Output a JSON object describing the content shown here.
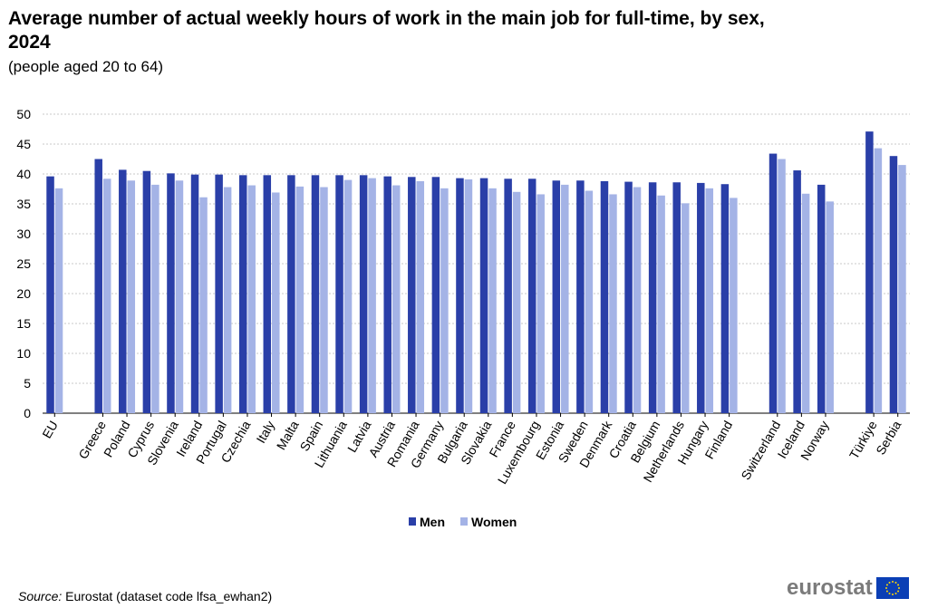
{
  "header": {
    "title": "Average number of actual weekly hours of work in the main job for full-time, by sex, 2024",
    "subtitle": "(people aged 20 to 64)"
  },
  "footer": {
    "source_label": "Source:",
    "source_text": "Eurostat (dataset code lfsa_ewhan2)",
    "logo_text": "eurostat",
    "logo_icon": "eu-flag-icon"
  },
  "colors": {
    "men": "#2a3fa8",
    "women": "#a4b3e6",
    "grid": "#c8c8c8",
    "axis": "#000000"
  },
  "chart_data": {
    "type": "bar",
    "title": "Average number of actual weekly hours of work in the main job for full-time, by sex, 2024",
    "xlabel": "",
    "ylabel": "",
    "ylim": [
      0,
      50
    ],
    "yticks": [
      0,
      5,
      10,
      15,
      20,
      25,
      30,
      35,
      40,
      45,
      50
    ],
    "grid": true,
    "legend_position": "bottom-center",
    "categories": [
      "EU",
      "",
      "Greece",
      "Poland",
      "Cyprus",
      "Slovenia",
      "Ireland",
      "Portugal",
      "Czechia",
      "Italy",
      "Malta",
      "Spain",
      "Lithuania",
      "Latvia",
      "Austria",
      "Romania",
      "Germany",
      "Bulgaria",
      "Slovakia",
      "France",
      "Luxembourg",
      "Estonia",
      "Sweden",
      "Denmark",
      "Croatia",
      "Belgium",
      "Netherlands",
      "Hungary",
      "Finland",
      "",
      "Switzerland",
      "Iceland",
      "Norway",
      "",
      "Türkiye",
      "Serbia"
    ],
    "series": [
      {
        "name": "Men",
        "values": [
          39.6,
          null,
          42.5,
          40.7,
          40.5,
          40.1,
          39.9,
          39.9,
          39.8,
          39.8,
          39.8,
          39.8,
          39.8,
          39.8,
          39.6,
          39.5,
          39.5,
          39.3,
          39.3,
          39.2,
          39.2,
          38.9,
          38.9,
          38.8,
          38.7,
          38.6,
          38.6,
          38.5,
          38.3,
          null,
          43.4,
          40.6,
          38.2,
          null,
          47.1,
          43.0
        ]
      },
      {
        "name": "Women",
        "values": [
          37.6,
          null,
          39.2,
          38.9,
          38.2,
          38.9,
          36.1,
          37.8,
          38.1,
          36.9,
          37.9,
          37.8,
          39.0,
          39.3,
          38.1,
          38.8,
          37.6,
          39.1,
          37.6,
          37.0,
          36.6,
          38.2,
          37.2,
          36.6,
          37.8,
          36.4,
          35.1,
          37.6,
          36.0,
          null,
          42.5,
          36.7,
          35.4,
          null,
          44.3,
          41.5
        ]
      }
    ]
  }
}
